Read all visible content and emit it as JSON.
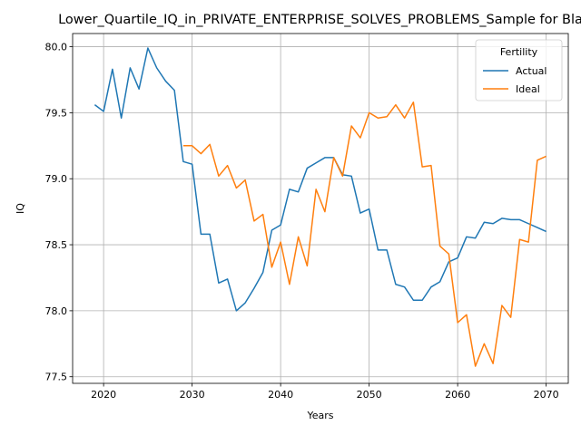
{
  "chart_data": {
    "type": "line",
    "title": "Lower_Quartile_IQ_in_PRIVATE_ENTERPRISE_SOLVES_PROBLEMS_Sample for Bla",
    "xlabel": "Years",
    "ylabel": "IQ",
    "xlim": [
      2016.5,
      2072.5
    ],
    "ylim": [
      77.45,
      80.1
    ],
    "xticks": [
      2020,
      2030,
      2040,
      2050,
      2060,
      2070
    ],
    "yticks": [
      77.5,
      78.0,
      78.5,
      79.0,
      79.5,
      80.0
    ],
    "grid": true,
    "legend": {
      "title": "Fertility",
      "location": "upper right"
    },
    "x": [
      2019,
      2020,
      2021,
      2022,
      2023,
      2024,
      2025,
      2026,
      2027,
      2028,
      2029,
      2030,
      2031,
      2032,
      2033,
      2034,
      2035,
      2036,
      2037,
      2038,
      2039,
      2040,
      2041,
      2042,
      2043,
      2044,
      2045,
      2046,
      2047,
      2048,
      2049,
      2050,
      2051,
      2052,
      2053,
      2054,
      2055,
      2056,
      2057,
      2058,
      2059,
      2060,
      2061,
      2062,
      2063,
      2064,
      2065,
      2066,
      2067,
      2068,
      2069,
      2070
    ],
    "series": [
      {
        "name": "Actual",
        "color": "#1f77b4",
        "values": [
          79.56,
          79.51,
          79.83,
          79.46,
          79.84,
          79.68,
          79.99,
          79.84,
          79.74,
          79.67,
          79.13,
          79.11,
          78.58,
          78.58,
          78.21,
          78.24,
          78.0,
          78.06,
          78.17,
          78.29,
          78.61,
          78.65,
          78.92,
          78.9,
          79.08,
          79.12,
          79.16,
          79.16,
          79.03,
          79.02,
          78.74,
          78.77,
          78.46,
          78.46,
          78.2,
          78.18,
          78.08,
          78.08,
          78.18,
          78.22,
          78.37,
          78.4,
          78.56,
          78.55,
          78.67,
          78.66,
          78.7,
          78.69,
          78.69,
          78.66,
          78.63,
          78.6
        ]
      },
      {
        "name": "Ideal",
        "color": "#ff7f0e",
        "values": [
          null,
          null,
          null,
          null,
          null,
          null,
          null,
          null,
          null,
          null,
          79.25,
          79.25,
          79.19,
          79.26,
          79.02,
          79.1,
          78.93,
          78.99,
          78.68,
          78.73,
          78.33,
          78.52,
          78.2,
          78.56,
          78.34,
          78.92,
          78.75,
          79.16,
          79.02,
          79.4,
          79.31,
          79.5,
          79.46,
          79.47,
          79.56,
          79.46,
          79.58,
          79.09,
          79.1,
          78.49,
          78.43,
          77.91,
          77.97,
          77.58,
          77.75,
          77.6,
          78.04,
          77.95,
          78.54,
          78.52,
          79.14,
          79.17
        ]
      }
    ]
  }
}
